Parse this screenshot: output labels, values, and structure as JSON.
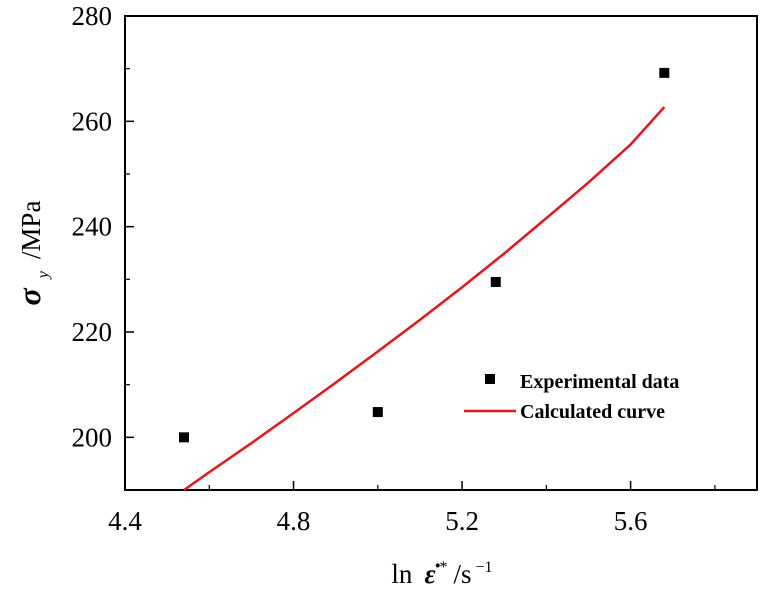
{
  "chart_data": {
    "type": "scatter",
    "xlabel_prefix": "ln",
    "xlabel_symbol": "ε̇",
    "xlabel_sup": "*",
    "xlabel_unit": "/s",
    "xlabel_unit_exp": "−1",
    "ylabel_symbol": "σ",
    "ylabel_sub": "y",
    "ylabel_unit": "/MPa",
    "xlim": [
      4.4,
      5.9
    ],
    "ylim": [
      190,
      280
    ],
    "x_ticks": [
      "4.4",
      "4.8",
      "5.2",
      "5.6"
    ],
    "y_ticks": [
      "200",
      "220",
      "240",
      "260",
      "280"
    ],
    "x_tick_values": [
      4.4,
      4.8,
      5.2,
      5.6
    ],
    "y_tick_values": [
      200,
      220,
      240,
      260,
      280
    ],
    "x_minor_tick_values": [
      4.6,
      5.0,
      5.4,
      5.8
    ],
    "y_minor_tick_values": [
      210,
      230,
      250,
      270
    ],
    "series": [
      {
        "name": "Experimental data",
        "kind": "scatter",
        "color": "#000000",
        "marker": "square",
        "points": [
          [
            4.54,
            200.0
          ],
          [
            5.0,
            204.8
          ],
          [
            5.28,
            229.5
          ],
          [
            5.68,
            269.2
          ]
        ]
      },
      {
        "name": "Calculated curve",
        "kind": "line",
        "color": "#e8141b",
        "points": [
          [
            4.54,
            190.0
          ],
          [
            4.6,
            193.4
          ],
          [
            4.7,
            198.9
          ],
          [
            4.8,
            204.6
          ],
          [
            4.9,
            210.4
          ],
          [
            5.0,
            216.3
          ],
          [
            5.1,
            222.3
          ],
          [
            5.2,
            228.5
          ],
          [
            5.3,
            234.9
          ],
          [
            5.4,
            241.6
          ],
          [
            5.5,
            248.4
          ],
          [
            5.6,
            255.6
          ],
          [
            5.68,
            262.7
          ]
        ]
      }
    ],
    "legend_position": "lower-right"
  }
}
